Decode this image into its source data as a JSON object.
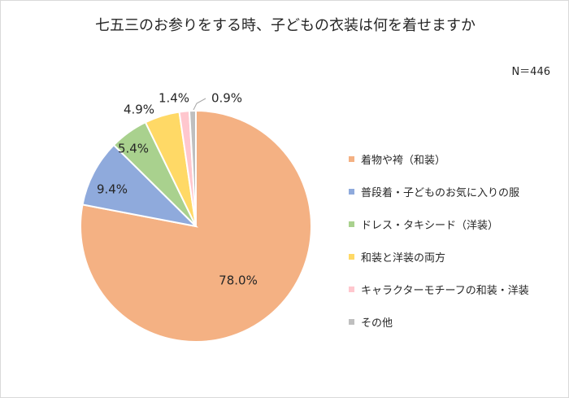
{
  "chart_data": {
    "type": "pie",
    "title": "七五三のお参りをする時、子どもの衣装は何を着せますか",
    "sample_note": "N＝446",
    "legend_position": "right",
    "slices": [
      {
        "label": "着物や袴（和装）",
        "value": 78.0,
        "display": "78.0%",
        "color": "#f4b183"
      },
      {
        "label": "普段着・子どものお気に入りの服",
        "value": 9.4,
        "display": "9.4%",
        "color": "#8faadc"
      },
      {
        "label": "ドレス・タキシード（洋装）",
        "value": 5.4,
        "display": "5.4%",
        "color": "#a9d18e"
      },
      {
        "label": "和装と洋装の両方",
        "value": 4.9,
        "display": "4.9%",
        "color": "#ffd966"
      },
      {
        "label": "キャラクターモチーフの和装・洋装",
        "value": 1.4,
        "display": "1.4%",
        "color": "#ffc7ce"
      },
      {
        "label": "その他",
        "value": 0.9,
        "display": "0.9%",
        "color": "#bfbfbf"
      }
    ]
  }
}
